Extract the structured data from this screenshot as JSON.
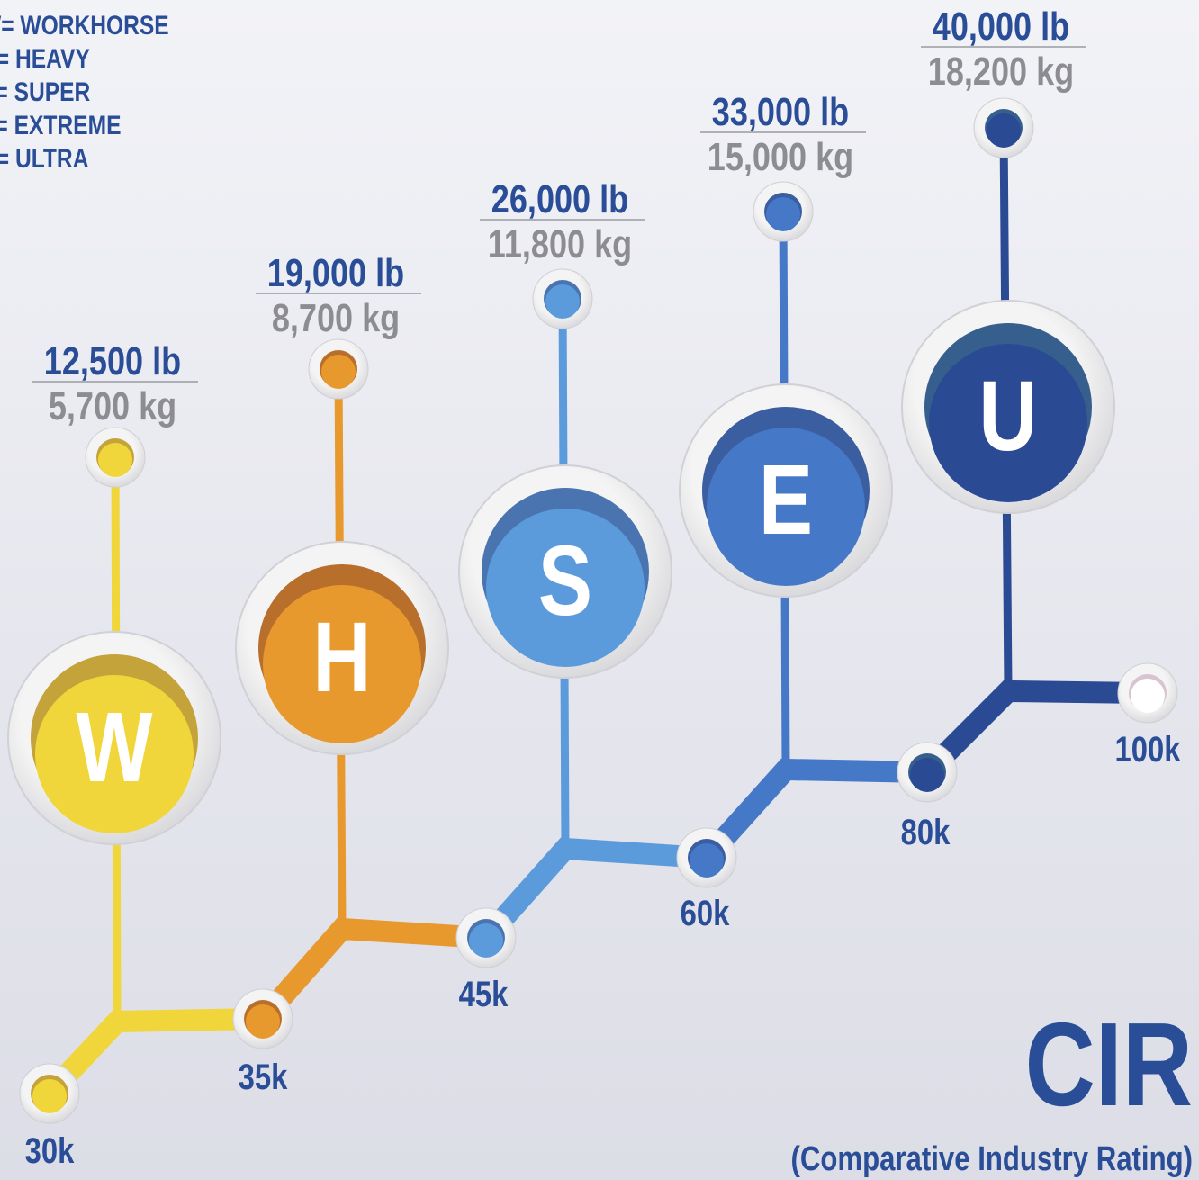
{
  "legend": [
    "W= WORKHORSE",
    "H= HEAVY",
    "S= SUPER",
    "E= EXTREME",
    "U= ULTRA"
  ],
  "tiers": [
    {
      "letter": "W",
      "lb": "12,500 lb",
      "kg": "5,700 kg"
    },
    {
      "letter": "H",
      "lb": "19,000 lb",
      "kg": "8,700 kg"
    },
    {
      "letter": "S",
      "lb": "26,000 lb",
      "kg": "11,800 kg"
    },
    {
      "letter": "E",
      "lb": "33,000 lb",
      "kg": "15,000 kg"
    },
    {
      "letter": "U",
      "lb": "40,000 lb",
      "kg": "18,200 kg"
    }
  ],
  "scale": [
    "30k",
    "35k",
    "45k",
    "60k",
    "80k",
    "100k"
  ],
  "title": "CIR",
  "subtitle": "(Comparative Industry Rating)"
}
